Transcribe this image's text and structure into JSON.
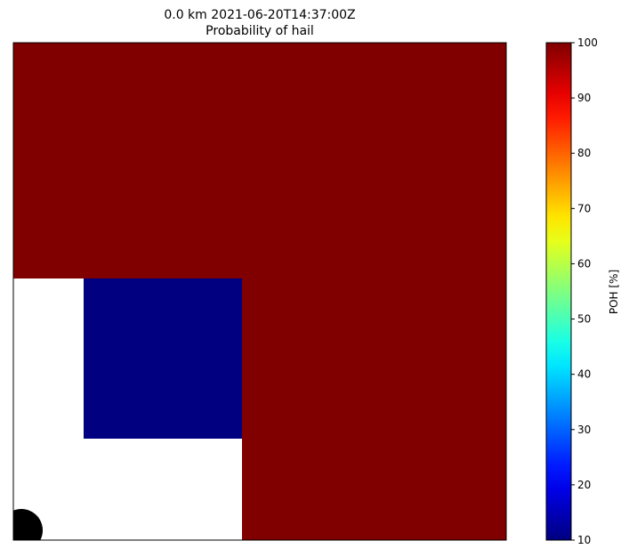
{
  "chart_data": {
    "type": "heatmap",
    "title": "0.0 km 2021-06-20T14:37:00Z",
    "subtitle": "Probability of hail",
    "colorbar": {
      "label": "POH [%]",
      "range": [
        10,
        100
      ],
      "ticks": [
        10,
        20,
        30,
        40,
        50,
        60,
        70,
        80,
        90,
        100
      ],
      "colormap": "jet"
    },
    "grid": false,
    "legend": "right",
    "regions": [
      {
        "name": "high-probability",
        "value": 100
      },
      {
        "name": "low-probability",
        "value": 10
      },
      {
        "name": "no-data",
        "value": null
      },
      {
        "name": "radar-location",
        "value": null
      }
    ]
  }
}
